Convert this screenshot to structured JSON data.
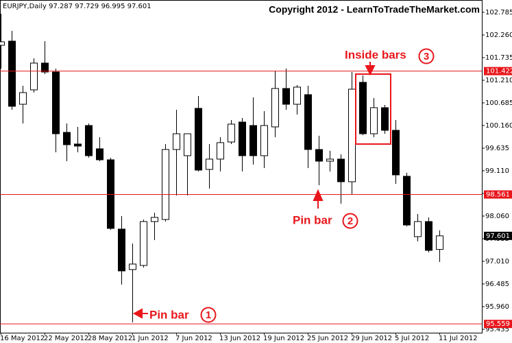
{
  "chart_data": {
    "type": "candlestick",
    "info": "EURJPY,Daily  97.287 97.729 96.995 97.601",
    "watermark": "Copyright 2012 - LearnToTradeTheMarket.com",
    "categories": [
      "16 May 2012",
      null,
      null,
      null,
      "22 May 2012",
      null,
      null,
      null,
      "28 May 2012",
      null,
      null,
      null,
      "1 Jun 2012",
      null,
      null,
      null,
      "7 Jun 2012",
      null,
      null,
      null,
      "13 Jun 2012",
      null,
      null,
      null,
      "19 Jun 2012",
      null,
      null,
      null,
      "25 Jun 2012",
      null,
      null,
      null,
      "29 Jun 2012",
      null,
      null,
      null,
      "5 Jul 2012",
      null,
      null,
      null,
      "11 Jul 2012"
    ],
    "open": [
      102.021,
      102.117,
      100.653,
      100.987,
      101.608,
      101.401,
      100.001,
      99.731,
      100.16,
      99.62,
      99.365,
      97.758,
      96.82,
      96.915,
      97.933,
      97.981,
      99.604,
      99.46,
      100.558,
      99.142,
      99.381,
      99.778,
      100.24,
      100.16,
      99.46,
      100.128,
      101.019,
      100.653,
      100.876,
      99.604,
      99.333,
      99.381,
      98.856,
      101.162,
      99.969,
      100.574,
      100.049,
      98.983,
      97.583,
      97.933,
      97.287
    ],
    "high": [
      102.753,
      102.355,
      101.083,
      101.719,
      102.117,
      101.481,
      100.208,
      100.128,
      100.208,
      99.89,
      99.413,
      98.06,
      97.424,
      97.981,
      98.14,
      99.731,
      100.526,
      99.969,
      100.844,
      99.731,
      99.89,
      100.287,
      100.335,
      100.812,
      100.494,
      101.433,
      101.481,
      101.099,
      101.083,
      99.922,
      99.572,
      99.492,
      101.401,
      101.321,
      100.797,
      100.637,
      100.287,
      99.063,
      98.108,
      98.029,
      97.729
    ],
    "low": [
      101.481,
      100.526,
      100.208,
      100.924,
      101.353,
      99.54,
      99.333,
      99.54,
      99.413,
      99.333,
      97.742,
      96.47,
      95.595,
      96.867,
      97.503,
      97.933,
      98.537,
      98.537,
      99.094,
      98.697,
      99.094,
      99.731,
      99.094,
      99.254,
      99.174,
      99.89,
      100.526,
      100.415,
      99.174,
      98.776,
      99.094,
      98.347,
      98.569,
      99.937,
      99.89,
      99.969,
      98.808,
      97.821,
      97.472,
      97.217,
      96.995
    ],
    "close": [
      102.101,
      100.606,
      100.924,
      101.608,
      101.401,
      99.969,
      99.715,
      99.683,
      99.46,
      99.365,
      97.774,
      96.788,
      96.947,
      97.933,
      98.029,
      99.604,
      99.969,
      99.969,
      99.126,
      99.381,
      99.763,
      100.192,
      99.46,
      99.46,
      100.16,
      101.019,
      100.653,
      101.051,
      99.604,
      99.333,
      99.381,
      98.856,
      101.003,
      99.969,
      100.574,
      100.049,
      99.015,
      97.853,
      97.933,
      97.265,
      97.601
    ],
    "ylim": [
      95.355,
      103.071
    ],
    "yticks": [
      102.785,
      {
        "value": 102.26,
        "label": "102.260"
      },
      101.735,
      {
        "value": 101.21,
        "label": "101.210"
      },
      100.685,
      {
        "value": 100.16,
        "label": "100.160"
      },
      99.635,
      {
        "value": 99.11,
        "label": "99.110"
      },
      98.585,
      {
        "value": 98.06,
        "label": "98.060"
      },
      97.535,
      {
        "value": 97.01,
        "label": "97.010"
      },
      96.485,
      {
        "value": 95.96,
        "label": "95.960"
      },
      95.435
    ],
    "levels": [
      101.422,
      98.561,
      95.559
    ],
    "level_color": "#e8161b",
    "last_price": 97.601,
    "up_color": "#ffffff",
    "down_color": "#000000",
    "annotations": [
      {
        "text": "Inside bars",
        "marker": "3"
      },
      {
        "text": "Pin bar",
        "marker": "2"
      },
      {
        "text": "Pin bar",
        "marker": "1"
      }
    ]
  }
}
